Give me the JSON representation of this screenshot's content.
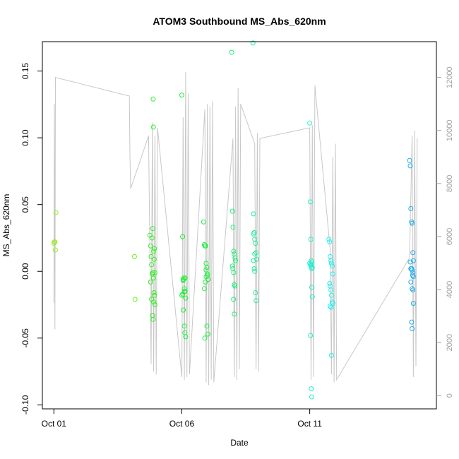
{
  "chart_data": {
    "type": "scatter",
    "title": "ATOM3 Southbound MS_Abs_620nm",
    "xlabel": "Date",
    "ylabel": "MS_Abs_620nm",
    "x_tick_labels": [
      {
        "label": "Oct 01",
        "day": 1
      },
      {
        "label": "Oct 06",
        "day": 6
      },
      {
        "label": "Oct 11",
        "day": 11
      }
    ],
    "y_ticks": [
      -0.1,
      -0.05,
      0.0,
      0.05,
      0.1,
      0.15
    ],
    "y_tick_labels": [
      "-0.10",
      "-0.05",
      "0.00",
      "0.05",
      "0.10",
      "0.15"
    ],
    "ylim": [
      -0.103,
      0.172
    ],
    "xlim_days": [
      0.55,
      15.95
    ],
    "y2_ticks": [
      0,
      2000,
      4000,
      6000,
      8000,
      10000,
      12000
    ],
    "y2_tick_labels": [
      "0",
      "2000",
      "4000",
      "6000",
      "8000",
      "10000",
      "12000"
    ],
    "y2lim": [
      -500,
      13350
    ],
    "grid": false,
    "legend": "none",
    "colors": {
      "depth_line": "#c8c8c8",
      "axis": "#000000",
      "right_axis": "#a0a0a0"
    },
    "depth_series": {
      "name": "",
      "x_days": [
        1.0,
        1.02,
        1.04,
        1.06,
        3.95,
        3.97,
        4.0,
        4.7,
        4.8,
        4.85,
        4.9,
        4.95,
        5.0,
        5.05,
        6.0,
        6.05,
        6.1,
        6.15,
        6.2,
        6.25,
        6.3,
        6.9,
        6.95,
        7.0,
        7.05,
        7.1,
        7.15,
        7.2,
        7.25,
        8.0,
        8.05,
        8.1,
        8.15,
        8.2,
        8.25,
        8.3,
        8.85,
        8.9,
        8.95,
        9.0,
        9.05,
        11.0,
        11.05,
        11.1,
        11.15,
        11.2,
        11.8,
        11.85,
        11.9,
        11.95,
        12.0,
        12.05,
        14.9,
        15.0,
        15.05,
        15.1,
        15.15,
        15.2
      ],
      "y_depth": [
        3500,
        11000,
        2500,
        12000,
        11300,
        9200,
        7800,
        9800,
        1200,
        10300,
        900,
        9800,
        800,
        10100,
        700,
        10500,
        600,
        12200,
        700,
        11400,
        800,
        10800,
        500,
        11000,
        400,
        10900,
        600,
        11100,
        500,
        9700,
        700,
        10900,
        600,
        11600,
        1000,
        11000,
        9500,
        1000,
        9900,
        900,
        9700,
        10100,
        600,
        10200,
        700,
        11700,
        5500,
        800,
        9000,
        500,
        9500,
        600,
        5200,
        9800,
        700,
        10000,
        1100,
        9700
      ]
    },
    "series": [
      {
        "x_days": [
          1.0,
          1.02,
          1.04,
          1.06,
          1.08
        ],
        "values": [
          0.021,
          0.022,
          0.022,
          0.016,
          0.044
        ],
        "color": "#99ee22"
      },
      {
        "x_days": [
          4.15,
          4.17
        ],
        "values": [
          0.011,
          -0.021
        ],
        "color": "#66ee22"
      },
      {
        "x_days": [
          4.75,
          4.78,
          4.8,
          4.82,
          4.85,
          4.87,
          4.89,
          4.91,
          4.93,
          4.95,
          4.78,
          4.82,
          4.86,
          4.88,
          4.9,
          4.92,
          4.84,
          4.86,
          4.89,
          4.93,
          4.95,
          4.88,
          4.9
        ],
        "values": [
          0.027,
          0.019,
          0.011,
          0.005,
          -0.002,
          -0.001,
          -0.005,
          -0.016,
          -0.018,
          -0.025,
          -0.008,
          -0.021,
          -0.033,
          -0.036,
          -0.023,
          0.009,
          0.025,
          0.032,
          0.108,
          0.017,
          -0.001,
          0.129,
          0.015
        ],
        "color": "#33ee22"
      },
      {
        "x_days": [
          6.0,
          6.03,
          6.05,
          6.08,
          6.1,
          6.13,
          6.15,
          6.03,
          6.06,
          6.1,
          6.12,
          6.15,
          6.05,
          6.1,
          6.13,
          6.0
        ],
        "values": [
          0.132,
          0.026,
          -0.007,
          -0.005,
          -0.013,
          -0.015,
          -0.02,
          -0.017,
          -0.029,
          -0.041,
          -0.046,
          -0.049,
          -0.006,
          -0.015,
          -0.005,
          -0.018
        ],
        "color": "#22ee33"
      },
      {
        "x_days": [
          6.85,
          6.88,
          6.9,
          6.93,
          6.95,
          6.98,
          7.0,
          7.03,
          6.88,
          6.92,
          6.95,
          6.98,
          7.02,
          6.9,
          6.95,
          7.0
        ],
        "values": [
          0.037,
          0.02,
          0.019,
          0.019,
          0.006,
          0.003,
          -0.003,
          -0.006,
          -0.013,
          -0.008,
          -0.004,
          -0.041,
          -0.047,
          -0.05,
          0.001,
          -0.002
        ],
        "color": "#22ee44"
      },
      {
        "x_days": [
          7.95,
          7.98,
          8.0,
          8.03,
          8.05,
          8.08,
          8.1,
          7.98,
          8.0,
          8.03,
          8.05,
          8.08,
          8.02,
          8.05
        ],
        "values": [
          0.164,
          0.045,
          0.033,
          0.015,
          0.013,
          0.01,
          0.008,
          0.004,
          0.002,
          -0.001,
          -0.01,
          -0.011,
          -0.021,
          -0.032
        ],
        "color": "#22ee77"
      },
      {
        "x_days": [
          8.78,
          8.8,
          8.83,
          8.85,
          8.88,
          8.9,
          8.93,
          8.8,
          8.83,
          8.85,
          8.88,
          8.9,
          8.8,
          8.85
        ],
        "values": [
          0.171,
          0.043,
          0.029,
          0.024,
          0.021,
          0.014,
          0.009,
          0.008,
          0.002,
          0.0,
          -0.016,
          -0.022,
          0.028,
          0.013
        ],
        "color": "#22ee99"
      },
      {
        "x_days": [
          11.0,
          11.02,
          11.04,
          11.06,
          11.08,
          11.0,
          11.03,
          11.05,
          11.08,
          11.1,
          11.03,
          11.06,
          11.08,
          11.1,
          11.05,
          11.08
        ],
        "values": [
          0.111,
          0.052,
          0.024,
          0.008,
          0.007,
          0.006,
          0.005,
          0.005,
          -0.012,
          -0.019,
          -0.048,
          -0.088,
          -0.094,
          0.003,
          0.004,
          0.002
        ],
        "color": "#22eecc"
      },
      {
        "x_days": [
          11.75,
          11.78,
          11.8,
          11.83,
          11.85,
          11.88,
          11.9,
          11.78,
          11.8,
          11.83,
          11.85,
          11.88,
          11.9,
          11.8,
          11.83,
          11.85
        ],
        "values": [
          0.024,
          0.022,
          0.011,
          0.008,
          0.006,
          0.004,
          -0.002,
          -0.009,
          -0.011,
          -0.014,
          -0.018,
          -0.023,
          -0.024,
          -0.026,
          -0.027,
          -0.063
        ],
        "color": "#22eeee"
      },
      {
        "x_days": [
          14.9,
          14.93,
          14.95,
          14.98,
          15.0,
          15.03,
          15.05,
          14.93,
          14.95,
          14.98,
          15.0,
          15.03,
          15.05,
          14.95,
          15.0,
          15.03,
          15.05,
          14.98,
          15.0,
          15.02
        ],
        "values": [
          0.083,
          0.079,
          0.047,
          0.037,
          0.036,
          0.014,
          0.008,
          0.007,
          0.002,
          0.002,
          0.001,
          -0.001,
          -0.004,
          -0.008,
          -0.013,
          -0.014,
          -0.024,
          -0.038,
          -0.043,
          -0.003
        ],
        "color": "#22aaee"
      }
    ]
  }
}
